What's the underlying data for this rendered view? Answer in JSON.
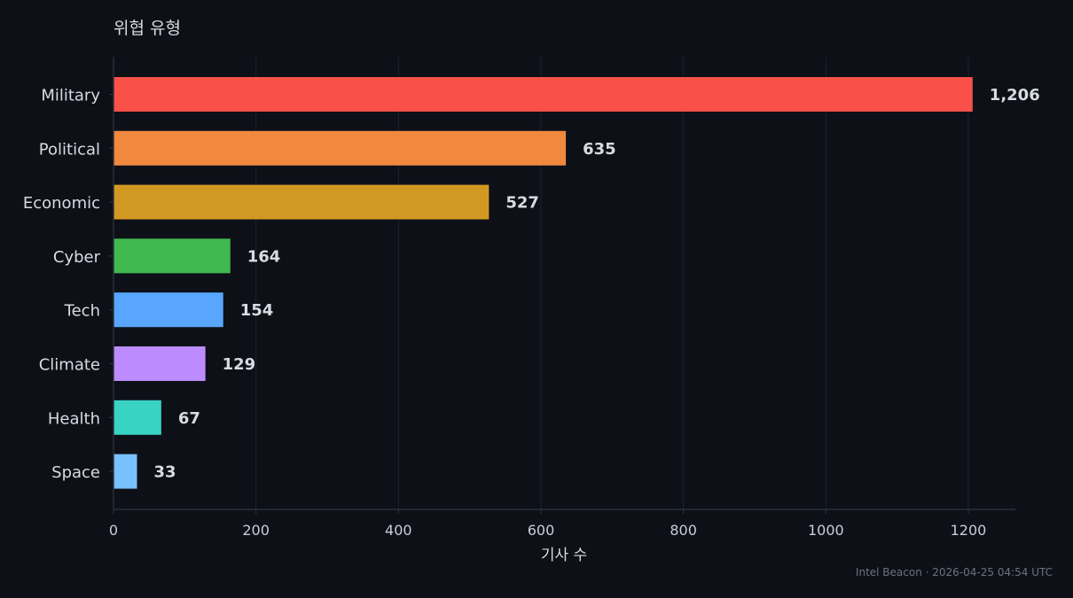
{
  "chart_data": {
    "type": "bar",
    "orientation": "horizontal",
    "title": "위협 유형",
    "xlabel": "기사 수",
    "ylabel": "",
    "categories": [
      "Military",
      "Political",
      "Economic",
      "Cyber",
      "Tech",
      "Climate",
      "Health",
      "Space"
    ],
    "values": [
      1206,
      635,
      527,
      164,
      154,
      129,
      67,
      33
    ],
    "value_labels": [
      "1,206",
      "635",
      "527",
      "164",
      "154",
      "129",
      "67",
      "33"
    ],
    "colors": [
      "#f85149",
      "#f0883e",
      "#d29922",
      "#3fb950",
      "#58a6ff",
      "#bc8cff",
      "#39d3c4",
      "#79c0ff"
    ],
    "xticks": [
      0,
      200,
      400,
      600,
      800,
      1000,
      1200
    ],
    "xtick_labels": [
      "0",
      "200",
      "400",
      "600",
      "800",
      "1000",
      "1200"
    ],
    "xlim": [
      0,
      1266
    ],
    "grid": "vertical",
    "legend": "none"
  },
  "footer": {
    "text": "Intel Beacon · 2026-04-25 04:54 UTC"
  }
}
